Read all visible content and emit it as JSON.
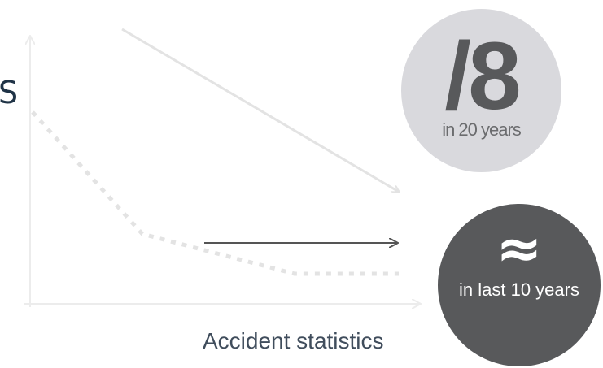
{
  "side_letter": "S",
  "caption": "Accident statistics",
  "light_badge": {
    "value": "/8",
    "caption": "in 20 years",
    "color": "#d9d9dd"
  },
  "dark_badge": {
    "symbol": "≈",
    "caption": "in last 10 years",
    "color": "#58595b"
  },
  "colors": {
    "axis": "#ececec",
    "dashed_trend": "#e3e3e3",
    "light_arrow": "#e3e3e3",
    "dark_arrow": "#555555",
    "side_letter": "#1f3346"
  }
}
